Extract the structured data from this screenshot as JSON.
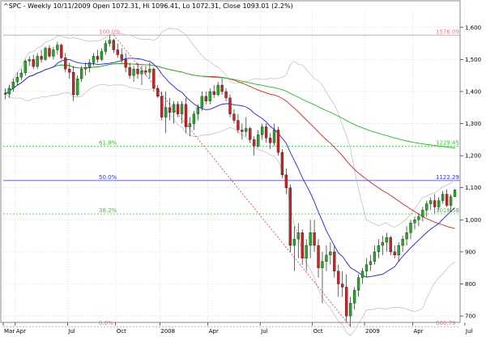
{
  "chart_data": {
    "type": "candlestick",
    "title": "^SPC - Weekly 10/11/2009 Open 1072.31, Hi 1096.41, Lo 1072.31, Close 1093.01 (2.2%)",
    "ylim": [
      680,
      1650
    ],
    "y_ticks": [
      700,
      800,
      900,
      1000,
      1100,
      1200,
      1300,
      1400,
      1500,
      1600
    ],
    "y_tick_labels": [
      "700",
      "800",
      "900",
      "1,000",
      "1,100",
      "1,200",
      "1,300",
      "1,400",
      "1,500",
      "1,600"
    ],
    "x_ticks": [
      {
        "label": "Mar",
        "x": 0
      },
      {
        "label": "Apr",
        "x": 3
      },
      {
        "label": "Jul",
        "x": 16
      },
      {
        "label": "Oct",
        "x": 28
      },
      {
        "label": "2008",
        "x": 39
      },
      {
        "label": "Apr",
        "x": 51
      },
      {
        "label": "Jul",
        "x": 64
      },
      {
        "label": "Oct",
        "x": 77
      },
      {
        "label": "2009",
        "x": 90
      },
      {
        "label": "Apr",
        "x": 102
      },
      {
        "label": "Jul",
        "x": 115
      },
      {
        "label": "Oct",
        "x": 128
      }
    ],
    "grid": true,
    "fib_levels": [
      {
        "label": "Fib 100.0%",
        "pct_label": "100.0%",
        "value": 1576.09,
        "value_label": "1576.09",
        "color": "#e08080"
      },
      {
        "label": "Fib 61.8%",
        "pct_label": "61.8%",
        "value": 1229.45,
        "value_label": "1229.45",
        "color": "#33cc33"
      },
      {
        "label": "Fib 50.0%",
        "pct_label": "50.0%",
        "value": 1122.29,
        "value_label": "1122.29",
        "color": "#3333cc"
      },
      {
        "label": "Fib 38.2%",
        "pct_label": "38.2%",
        "value": 1018.58,
        "value_label": "1018.58",
        "color": "#33cc33"
      },
      {
        "label": "Fib 0.0%",
        "pct_label": "0.0%",
        "value": 666.79,
        "value_label": "666.79",
        "color": "#e08080"
      }
    ],
    "candles": [
      [
        1395,
        1410,
        1375,
        1392
      ],
      [
        1392,
        1420,
        1380,
        1410
      ],
      [
        1410,
        1440,
        1400,
        1430
      ],
      [
        1430,
        1460,
        1420,
        1445
      ],
      [
        1445,
        1470,
        1435,
        1458
      ],
      [
        1458,
        1500,
        1450,
        1495
      ],
      [
        1495,
        1510,
        1480,
        1500
      ],
      [
        1500,
        1515,
        1470,
        1478
      ],
      [
        1478,
        1520,
        1470,
        1510
      ],
      [
        1510,
        1530,
        1490,
        1500
      ],
      [
        1500,
        1540,
        1495,
        1535
      ],
      [
        1535,
        1545,
        1505,
        1510
      ],
      [
        1510,
        1540,
        1500,
        1530
      ],
      [
        1530,
        1555,
        1515,
        1545
      ],
      [
        1545,
        1550,
        1500,
        1505
      ],
      [
        1505,
        1520,
        1460,
        1470
      ],
      [
        1470,
        1490,
        1440,
        1460
      ],
      [
        1460,
        1480,
        1370,
        1390
      ],
      [
        1390,
        1450,
        1385,
        1440
      ],
      [
        1440,
        1480,
        1430,
        1470
      ],
      [
        1470,
        1490,
        1450,
        1475
      ],
      [
        1475,
        1500,
        1460,
        1490
      ],
      [
        1490,
        1520,
        1480,
        1510
      ],
      [
        1510,
        1530,
        1490,
        1500
      ],
      [
        1500,
        1535,
        1495,
        1525
      ],
      [
        1525,
        1560,
        1515,
        1550
      ],
      [
        1550,
        1576,
        1540,
        1560
      ],
      [
        1560,
        1565,
        1520,
        1530
      ],
      [
        1530,
        1550,
        1505,
        1515
      ],
      [
        1515,
        1535,
        1490,
        1500
      ],
      [
        1500,
        1520,
        1460,
        1475
      ],
      [
        1475,
        1490,
        1440,
        1450
      ],
      [
        1450,
        1480,
        1430,
        1470
      ],
      [
        1470,
        1490,
        1440,
        1455
      ],
      [
        1455,
        1480,
        1420,
        1465
      ],
      [
        1465,
        1480,
        1450,
        1460
      ],
      [
        1460,
        1490,
        1440,
        1470
      ],
      [
        1470,
        1475,
        1400,
        1410
      ],
      [
        1410,
        1420,
        1380,
        1385
      ],
      [
        1385,
        1400,
        1310,
        1320
      ],
      [
        1320,
        1400,
        1270,
        1350
      ],
      [
        1350,
        1380,
        1310,
        1335
      ],
      [
        1335,
        1370,
        1300,
        1360
      ],
      [
        1360,
        1370,
        1320,
        1330
      ],
      [
        1330,
        1370,
        1300,
        1360
      ],
      [
        1360,
        1380,
        1270,
        1290
      ],
      [
        1290,
        1320,
        1260,
        1300
      ],
      [
        1300,
        1340,
        1280,
        1330
      ],
      [
        1330,
        1360,
        1310,
        1350
      ],
      [
        1350,
        1400,
        1340,
        1385
      ],
      [
        1385,
        1400,
        1360,
        1370
      ],
      [
        1370,
        1410,
        1360,
        1400
      ],
      [
        1400,
        1420,
        1380,
        1390
      ],
      [
        1390,
        1430,
        1385,
        1420
      ],
      [
        1420,
        1440,
        1390,
        1400
      ],
      [
        1400,
        1410,
        1370,
        1380
      ],
      [
        1380,
        1390,
        1320,
        1330
      ],
      [
        1330,
        1345,
        1300,
        1310
      ],
      [
        1310,
        1330,
        1270,
        1280
      ],
      [
        1280,
        1300,
        1250,
        1275
      ],
      [
        1275,
        1320,
        1260,
        1285
      ],
      [
        1285,
        1290,
        1240,
        1250
      ],
      [
        1250,
        1260,
        1200,
        1230
      ],
      [
        1230,
        1280,
        1225,
        1265
      ],
      [
        1265,
        1300,
        1250,
        1290
      ],
      [
        1290,
        1300,
        1240,
        1255
      ],
      [
        1255,
        1270,
        1220,
        1240
      ],
      [
        1240,
        1300,
        1230,
        1280
      ],
      [
        1280,
        1290,
        1200,
        1210
      ],
      [
        1210,
        1220,
        1130,
        1140
      ],
      [
        1140,
        1160,
        1080,
        1100
      ],
      [
        1100,
        1110,
        900,
        920
      ],
      [
        920,
        980,
        840,
        940
      ],
      [
        940,
        990,
        880,
        960
      ],
      [
        960,
        970,
        860,
        880
      ],
      [
        880,
        940,
        840,
        920
      ],
      [
        920,
        1000,
        880,
        960
      ],
      [
        960,
        1000,
        900,
        920
      ],
      [
        920,
        940,
        820,
        850
      ],
      [
        850,
        900,
        740,
        870
      ],
      [
        870,
        920,
        840,
        890
      ],
      [
        890,
        930,
        860,
        900
      ],
      [
        900,
        920,
        820,
        840
      ],
      [
        840,
        860,
        760,
        800
      ],
      [
        800,
        840,
        760,
        790
      ],
      [
        790,
        830,
        680,
        700
      ],
      [
        700,
        760,
        667,
        740
      ],
      [
        740,
        790,
        720,
        780
      ],
      [
        780,
        830,
        760,
        820
      ],
      [
        820,
        850,
        800,
        840
      ],
      [
        840,
        880,
        820,
        860
      ],
      [
        860,
        890,
        840,
        870
      ],
      [
        870,
        920,
        860,
        900
      ],
      [
        900,
        940,
        880,
        920
      ],
      [
        920,
        950,
        890,
        930
      ],
      [
        930,
        960,
        900,
        945
      ],
      [
        945,
        950,
        890,
        900
      ],
      [
        900,
        920,
        880,
        890
      ],
      [
        890,
        930,
        870,
        920
      ],
      [
        920,
        950,
        900,
        940
      ],
      [
        940,
        980,
        920,
        960
      ],
      [
        960,
        1000,
        940,
        990
      ],
      [
        990,
        1010,
        970,
        1000
      ],
      [
        1000,
        1020,
        980,
        1010
      ],
      [
        1010,
        1040,
        995,
        1030
      ],
      [
        1030,
        1060,
        1010,
        1050
      ],
      [
        1050,
        1070,
        1030,
        1060
      ],
      [
        1060,
        1080,
        1020,
        1040
      ],
      [
        1040,
        1070,
        1030,
        1060
      ],
      [
        1060,
        1090,
        1050,
        1080
      ],
      [
        1080,
        1095,
        1040,
        1045
      ],
      [
        1045,
        1080,
        1025,
        1072
      ],
      [
        1072,
        1096,
        1072,
        1093
      ]
    ]
  }
}
